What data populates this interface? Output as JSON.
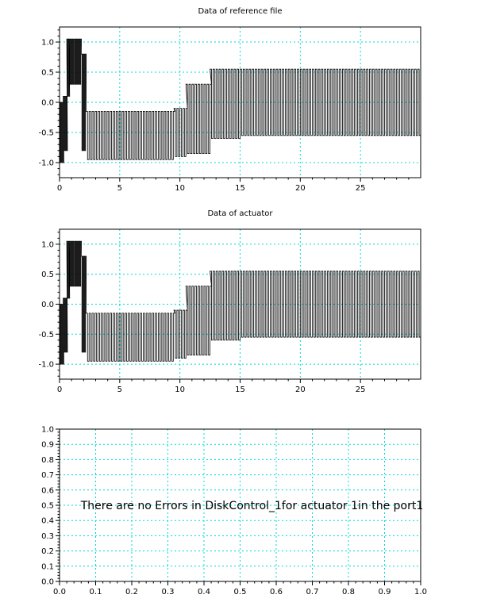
{
  "chart_data": [
    {
      "type": "line",
      "title": "Data of reference file",
      "xlabel": "",
      "ylabel": "",
      "xlim": [
        0,
        30
      ],
      "ylim": [
        -1.25,
        1.25
      ],
      "xticks": [
        0,
        5,
        10,
        15,
        20,
        25
      ],
      "yticks": [
        -1.0,
        -0.5,
        0.0,
        0.5,
        1.0
      ],
      "grid": true,
      "series": [
        {
          "segments": [
            {
              "x": [
                0,
                0.3
              ],
              "period": 0.12,
              "low": -1.0,
              "high": 0.0
            },
            {
              "x": [
                0.3,
                0.6
              ],
              "period": 0.12,
              "low": -0.8,
              "high": 0.1
            },
            {
              "x": [
                0.6,
                0.8
              ],
              "period": 0.12,
              "low": 0.1,
              "high": 1.05
            },
            {
              "x": [
                0.8,
                1.8
              ],
              "period": 0.12,
              "low": 0.3,
              "high": 1.05
            },
            {
              "x": [
                1.8,
                2.2
              ],
              "period": 0.12,
              "low": -0.8,
              "high": 0.8
            },
            {
              "x": [
                2.2,
                9.5
              ],
              "period": 0.25,
              "low": -0.95,
              "high": -0.15
            },
            {
              "x": [
                9.5,
                10.5
              ],
              "period": 0.25,
              "low": -0.9,
              "high": -0.1
            },
            {
              "x": [
                10.5,
                12.5
              ],
              "period": 0.25,
              "low": -0.85,
              "high": 0.3
            },
            {
              "x": [
                12.5,
                15.0
              ],
              "period": 0.25,
              "low": -0.6,
              "high": 0.55
            },
            {
              "x": [
                15.0,
                30.0
              ],
              "period": 0.25,
              "low": -0.55,
              "high": 0.55
            }
          ]
        }
      ]
    },
    {
      "type": "line",
      "title": "Data of actuator",
      "xlabel": "",
      "ylabel": "",
      "xlim": [
        0,
        30
      ],
      "ylim": [
        -1.25,
        1.25
      ],
      "xticks": [
        0,
        5,
        10,
        15,
        20,
        25
      ],
      "yticks": [
        -1.0,
        -0.5,
        0.0,
        0.5,
        1.0
      ],
      "grid": true,
      "series": [
        {
          "segments": [
            {
              "x": [
                0,
                0.3
              ],
              "period": 0.12,
              "low": -1.0,
              "high": 0.0
            },
            {
              "x": [
                0.3,
                0.6
              ],
              "period": 0.12,
              "low": -0.8,
              "high": 0.1
            },
            {
              "x": [
                0.6,
                0.8
              ],
              "period": 0.12,
              "low": 0.1,
              "high": 1.05
            },
            {
              "x": [
                0.8,
                1.8
              ],
              "period": 0.12,
              "low": 0.3,
              "high": 1.05
            },
            {
              "x": [
                1.8,
                2.2
              ],
              "period": 0.12,
              "low": -0.8,
              "high": 0.8
            },
            {
              "x": [
                2.2,
                9.5
              ],
              "period": 0.25,
              "low": -0.95,
              "high": -0.15
            },
            {
              "x": [
                9.5,
                10.5
              ],
              "period": 0.25,
              "low": -0.9,
              "high": -0.1
            },
            {
              "x": [
                10.5,
                12.5
              ],
              "period": 0.25,
              "low": -0.85,
              "high": 0.3
            },
            {
              "x": [
                12.5,
                15.0
              ],
              "period": 0.25,
              "low": -0.6,
              "high": 0.55
            },
            {
              "x": [
                15.0,
                30.0
              ],
              "period": 0.25,
              "low": -0.55,
              "high": 0.55
            }
          ]
        }
      ]
    },
    {
      "type": "line",
      "title": "",
      "xlabel": "",
      "ylabel": "",
      "xlim": [
        0,
        1
      ],
      "ylim": [
        0,
        1
      ],
      "xticks": [
        0.0,
        0.1,
        0.2,
        0.3,
        0.4,
        0.5,
        0.6,
        0.7,
        0.8,
        0.9,
        1.0
      ],
      "yticks": [
        0.0,
        0.1,
        0.2,
        0.3,
        0.4,
        0.5,
        0.6,
        0.7,
        0.8,
        0.9,
        1.0
      ],
      "grid": true,
      "annotation": "There are no Errors in DiskControl_1for actuator 1in the port1",
      "series": []
    }
  ]
}
